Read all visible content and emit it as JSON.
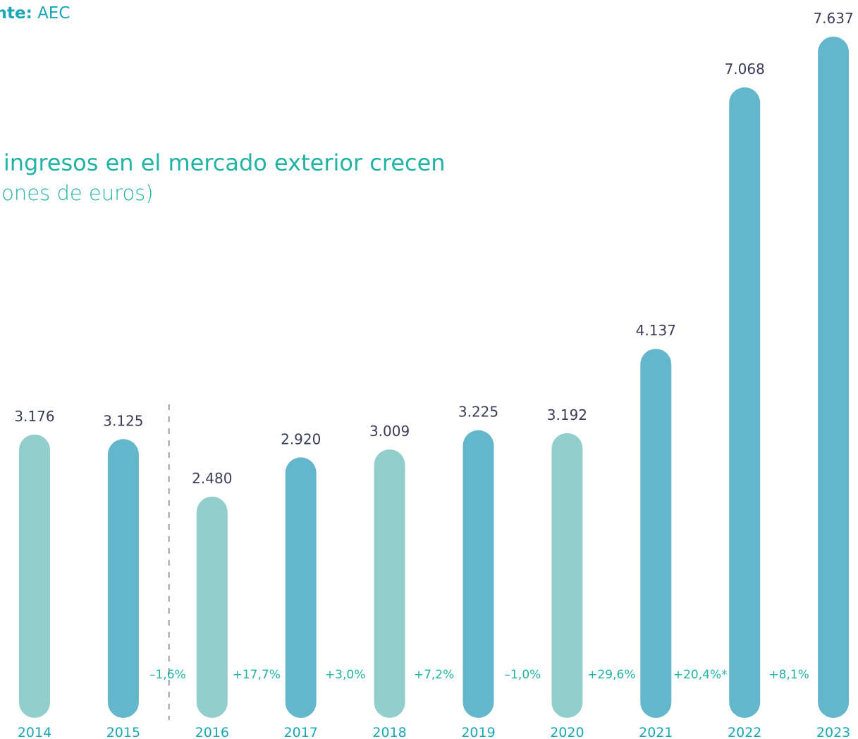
{
  "source": {
    "label": "ente:",
    "value": "AEC"
  },
  "title": "s ingresos en el mercado exterior crecen",
  "subtitle": "illones de euros)",
  "colors": {
    "light": "#92cfcc",
    "dark": "#64b7cb",
    "accent": "#21b3a4",
    "value_text": "#3b3d57"
  },
  "chart_data": {
    "type": "bar",
    "categories": [
      "2014",
      "2015",
      "2016",
      "2017",
      "2018",
      "2019",
      "2020",
      "2021",
      "2022",
      "2023"
    ],
    "values": [
      3176,
      3125,
      2480,
      2920,
      3009,
      3225,
      3192,
      4137,
      7068,
      7637
    ],
    "value_labels": [
      "3.176",
      "3.125",
      "2.480",
      "2.920",
      "3.009",
      "3.225",
      "3.192",
      "4.137",
      "7.068",
      "7.637"
    ],
    "bar_colors": [
      "light",
      "dark",
      "light",
      "dark",
      "light",
      "dark",
      "light",
      "dark",
      "dark",
      "dark"
    ],
    "changes": [
      "–1,6%",
      "+17,7%",
      "+3,0%",
      "+7,2%",
      "–1,0%",
      "+29,6%",
      "+20,4%*",
      "+8,1%"
    ],
    "series_break_after": "2015",
    "ylim": [
      0,
      7637
    ],
    "grid": false,
    "legend": "none",
    "title": "s ingresos en el mercado exterior crecen",
    "ylabel": "illones de euros)"
  }
}
